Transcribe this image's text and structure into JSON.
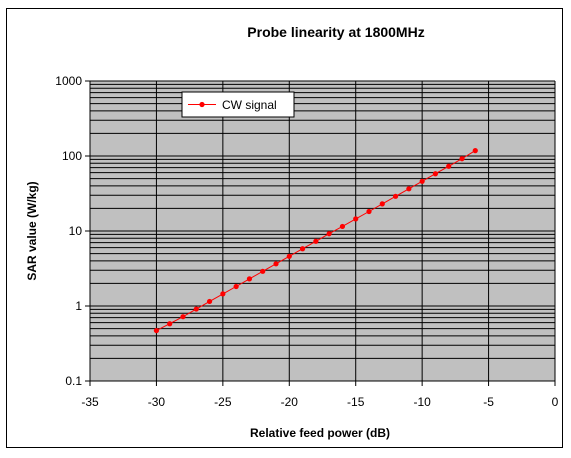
{
  "chart_data": {
    "type": "line",
    "title": "Probe linearity at 1800MHz",
    "xlabel": "Relative feed power (dB)",
    "ylabel": "SAR value (W/kg)",
    "xlim": [
      -35,
      0
    ],
    "ylim": [
      0.1,
      1000
    ],
    "yscale": "log",
    "xticks": [
      "-35",
      "-30",
      "-25",
      "-20",
      "-15",
      "-10",
      "-5",
      "0"
    ],
    "yticks": [
      "0.1",
      "1",
      "10",
      "100",
      "1000"
    ],
    "grid": true,
    "legend_position": "top-left",
    "colors": {
      "plot_bg": "#c0c0c0",
      "series": "#ff0000"
    },
    "series": [
      {
        "name": "CW signal",
        "x": [
          -30,
          -29,
          -28,
          -27,
          -26,
          -25,
          -24,
          -23,
          -22,
          -21,
          -20,
          -19,
          -18,
          -17,
          -16,
          -15,
          -14,
          -13,
          -12,
          -11,
          -10,
          -9,
          -8,
          -7,
          -6
        ],
        "y": [
          0.47,
          0.58,
          0.72,
          0.91,
          1.15,
          1.45,
          1.82,
          2.3,
          2.9,
          3.65,
          4.6,
          5.8,
          7.3,
          9.2,
          11.5,
          14.5,
          18.2,
          23,
          29,
          36.5,
          46,
          58,
          73,
          92,
          118
        ]
      }
    ]
  }
}
